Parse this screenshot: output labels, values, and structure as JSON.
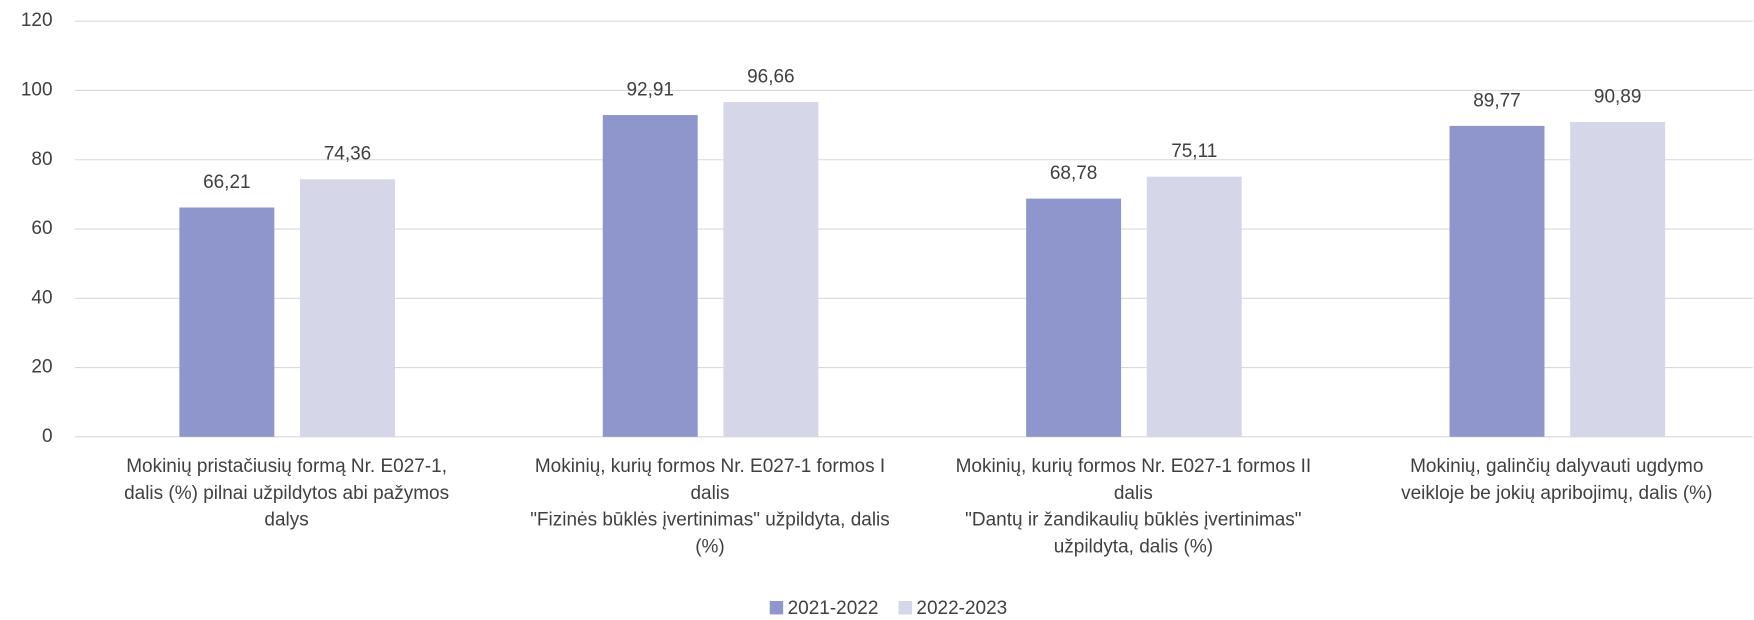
{
  "chart_data": {
    "type": "bar",
    "categories": [
      "Mokinių pristačiusių formą Nr. E027-1,\ndalis (%) pilnai užpildytos abi pažymos\ndalys",
      "Mokinių, kurių formos  Nr. E027-1 formos I\ndalis\n\"Fizinės būklės įvertinimas\" užpildyta, dalis\n(%)",
      "Mokinių, kurių formos  Nr. E027-1 formos II\ndalis\n\"Dantų ir žandikaulių būklės įvertinimas\"\nužpildyta, dalis (%)",
      "Mokinių, galinčių dalyvauti ugdymo\nveikloje be jokių apribojimų, dalis (%)"
    ],
    "series": [
      {
        "name": "2021-2022",
        "color": "#8f96cc",
        "values": [
          66.21,
          92.91,
          68.78,
          89.77
        ],
        "value_labels": [
          "66,21",
          "92,91",
          "68,78",
          "89,77"
        ]
      },
      {
        "name": "2022-2023",
        "color": "#d5d6e8",
        "values": [
          74.36,
          96.66,
          75.11,
          90.89
        ],
        "value_labels": [
          "74,36",
          "96,66",
          "75,11",
          "90,89"
        ]
      }
    ],
    "ylim": [
      0,
      120
    ],
    "yticks": [
      0,
      20,
      40,
      60,
      80,
      100,
      120
    ],
    "grid": true,
    "legend": "bottom"
  }
}
